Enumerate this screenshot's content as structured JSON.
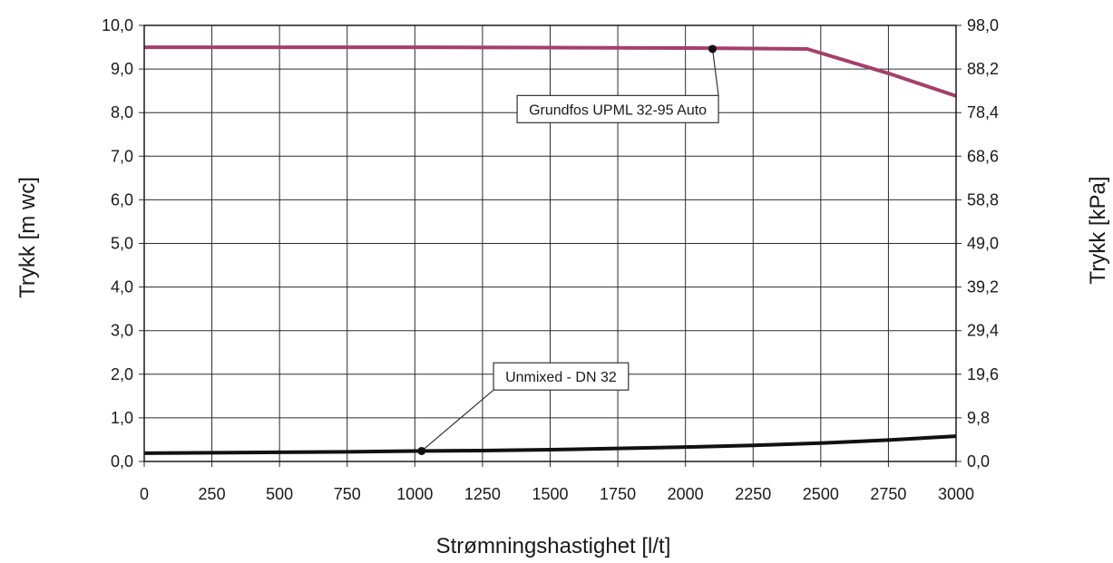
{
  "chart_data": {
    "type": "line",
    "xlabel": "Strømningshastighet [l/t]",
    "ylabel": "Trykk [m wc]",
    "y2label": "Trykk [kPa]",
    "xlim": [
      0,
      3000
    ],
    "ylim": [
      0,
      10
    ],
    "y2lim": [
      0,
      98
    ],
    "x_ticks": [
      "0",
      "250",
      "500",
      "750",
      "1000",
      "1250",
      "1500",
      "1750",
      "2000",
      "2250",
      "2500",
      "2750",
      "3000"
    ],
    "y_ticks": [
      "0,0",
      "1,0",
      "2,0",
      "3,0",
      "4,0",
      "5,0",
      "6,0",
      "7,0",
      "8,0",
      "9,0",
      "10,0"
    ],
    "y2_ticks": [
      "0,0",
      "9,8",
      "19,6",
      "29,4",
      "39,2",
      "49,0",
      "58,8",
      "68,6",
      "78,4",
      "88,2",
      "98,0"
    ],
    "grid": true,
    "series": [
      {
        "name": "Grundfos UPML 32-95 Auto",
        "color": "#a3406b",
        "x": [
          0,
          500,
          1000,
          1500,
          2000,
          2250,
          2450,
          2750,
          3000
        ],
        "y": [
          9.5,
          9.5,
          9.5,
          9.49,
          9.48,
          9.47,
          9.46,
          8.9,
          8.38
        ],
        "marker": [
          2100,
          9.46
        ],
        "label_anchor": [
          1750,
          8.08
        ]
      },
      {
        "name": "Unmixed - DN 32",
        "color": "#111111",
        "x": [
          0,
          250,
          500,
          750,
          1000,
          1250,
          1500,
          1750,
          2000,
          2250,
          2500,
          2750,
          3000
        ],
        "y": [
          0.19,
          0.2,
          0.21,
          0.22,
          0.24,
          0.25,
          0.27,
          0.3,
          0.33,
          0.37,
          0.42,
          0.49,
          0.58
        ],
        "marker": [
          1025,
          0.24
        ],
        "label_anchor": [
          1540,
          1.95
        ]
      }
    ]
  }
}
